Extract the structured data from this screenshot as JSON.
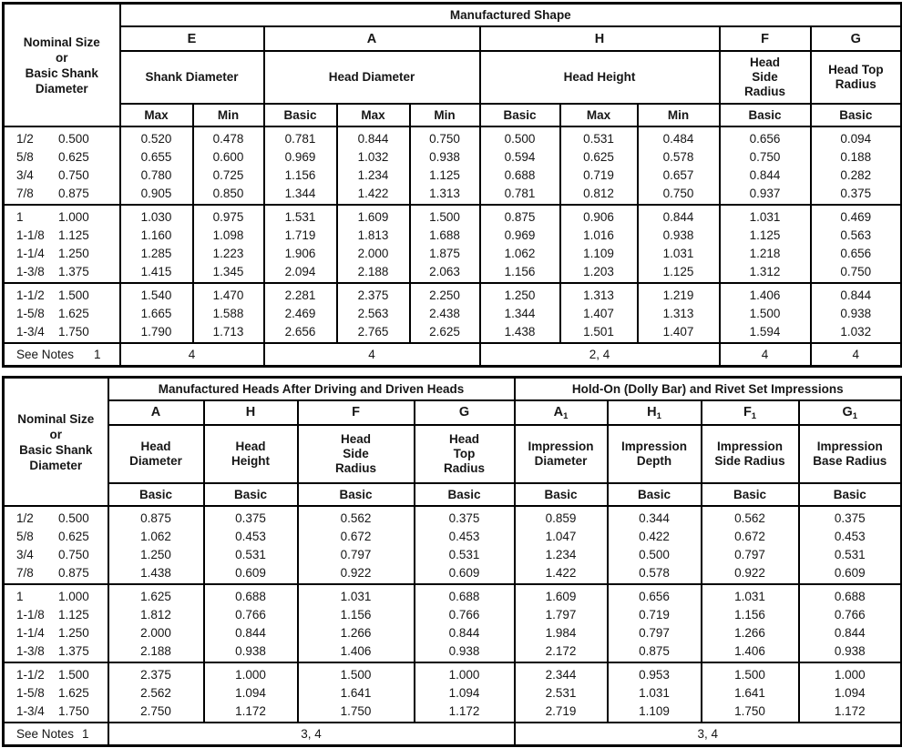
{
  "document": {
    "background": "#ffffff",
    "border_color": "#000000",
    "text_color": "#161616"
  },
  "table1": {
    "title": "Manufactured Shape",
    "nominal_header": "Nominal Size\nor\nBasic Shank\nDiameter",
    "letters": [
      "E",
      "A",
      "H",
      "F",
      "G"
    ],
    "descriptions": [
      "Shank Diameter",
      "Head Diameter",
      "Head Height",
      "Head\nSide\nRadius",
      "Head Top\nRadius"
    ],
    "subheaders": [
      "Max",
      "Min",
      "Basic",
      "Max",
      "Min",
      "Basic",
      "Max",
      "Min",
      "Basic",
      "Basic"
    ],
    "groups": [
      {
        "rows": [
          {
            "size": "1/2",
            "decimal": "0.500",
            "values": [
              "0.520",
              "0.478",
              "0.781",
              "0.844",
              "0.750",
              "0.500",
              "0.531",
              "0.484",
              "0.656",
              "0.094"
            ]
          },
          {
            "size": "5/8",
            "decimal": "0.625",
            "values": [
              "0.655",
              "0.600",
              "0.969",
              "1.032",
              "0.938",
              "0.594",
              "0.625",
              "0.578",
              "0.750",
              "0.188"
            ]
          },
          {
            "size": "3/4",
            "decimal": "0.750",
            "values": [
              "0.780",
              "0.725",
              "1.156",
              "1.234",
              "1.125",
              "0.688",
              "0.719",
              "0.657",
              "0.844",
              "0.282"
            ]
          },
          {
            "size": "7/8",
            "decimal": "0.875",
            "values": [
              "0.905",
              "0.850",
              "1.344",
              "1.422",
              "1.313",
              "0.781",
              "0.812",
              "0.750",
              "0.937",
              "0.375"
            ]
          }
        ]
      },
      {
        "rows": [
          {
            "size": "1",
            "decimal": "1.000",
            "values": [
              "1.030",
              "0.975",
              "1.531",
              "1.609",
              "1.500",
              "0.875",
              "0.906",
              "0.844",
              "1.031",
              "0.469"
            ]
          },
          {
            "size": "1-1/8",
            "decimal": "1.125",
            "values": [
              "1.160",
              "1.098",
              "1.719",
              "1.813",
              "1.688",
              "0.969",
              "1.016",
              "0.938",
              "1.125",
              "0.563"
            ]
          },
          {
            "size": "1-1/4",
            "decimal": "1.250",
            "values": [
              "1.285",
              "1.223",
              "1.906",
              "2.000",
              "1.875",
              "1.062",
              "1.109",
              "1.031",
              "1.218",
              "0.656"
            ]
          },
          {
            "size": "1-3/8",
            "decimal": "1.375",
            "values": [
              "1.415",
              "1.345",
              "2.094",
              "2.188",
              "2.063",
              "1.156",
              "1.203",
              "1.125",
              "1.312",
              "0.750"
            ]
          }
        ]
      },
      {
        "rows": [
          {
            "size": "1-1/2",
            "decimal": "1.500",
            "values": [
              "1.540",
              "1.470",
              "2.281",
              "2.375",
              "2.250",
              "1.250",
              "1.313",
              "1.219",
              "1.406",
              "0.844"
            ]
          },
          {
            "size": "1-5/8",
            "decimal": "1.625",
            "values": [
              "1.665",
              "1.588",
              "2.469",
              "2.563",
              "2.438",
              "1.344",
              "1.407",
              "1.313",
              "1.500",
              "0.938"
            ]
          },
          {
            "size": "1-3/4",
            "decimal": "1.750",
            "values": [
              "1.790",
              "1.713",
              "2.656",
              "2.765",
              "2.625",
              "1.438",
              "1.501",
              "1.407",
              "1.594",
              "1.032"
            ]
          }
        ]
      }
    ],
    "see_notes": {
      "label": "See Notes",
      "note": "1",
      "cells": [
        "4",
        "4",
        "2, 4",
        "4",
        "4"
      ]
    }
  },
  "table2": {
    "title_left": "Manufactured Heads After Driving and Driven Heads",
    "title_right": "Hold-On (Dolly Bar) and Rivet Set Impressions",
    "nominal_header": "Nominal Size\nor\nBasic Shank\nDiameter",
    "letters": [
      {
        "base": "A",
        "sub": ""
      },
      {
        "base": "H",
        "sub": ""
      },
      {
        "base": "F",
        "sub": ""
      },
      {
        "base": "G",
        "sub": ""
      },
      {
        "base": "A",
        "sub": "1"
      },
      {
        "base": "H",
        "sub": "1"
      },
      {
        "base": "F",
        "sub": "1"
      },
      {
        "base": "G",
        "sub": "1"
      }
    ],
    "descriptions": [
      "Head\nDiameter",
      "Head\nHeight",
      "Head\nSide\nRadius",
      "Head\nTop\nRadius",
      "Impression\nDiameter",
      "Impression\nDepth",
      "Impression\nSide Radius",
      "Impression\nBase Radius"
    ],
    "subheaders": [
      "Basic",
      "Basic",
      "Basic",
      "Basic",
      "Basic",
      "Basic",
      "Basic",
      "Basic"
    ],
    "groups": [
      {
        "rows": [
          {
            "size": "1/2",
            "decimal": "0.500",
            "values": [
              "0.875",
              "0.375",
              "0.562",
              "0.375",
              "0.859",
              "0.344",
              "0.562",
              "0.375"
            ]
          },
          {
            "size": "5/8",
            "decimal": "0.625",
            "values": [
              "1.062",
              "0.453",
              "0.672",
              "0.453",
              "1.047",
              "0.422",
              "0.672",
              "0.453"
            ]
          },
          {
            "size": "3/4",
            "decimal": "0.750",
            "values": [
              "1.250",
              "0.531",
              "0.797",
              "0.531",
              "1.234",
              "0.500",
              "0.797",
              "0.531"
            ]
          },
          {
            "size": "7/8",
            "decimal": "0.875",
            "values": [
              "1.438",
              "0.609",
              "0.922",
              "0.609",
              "1.422",
              "0.578",
              "0.922",
              "0.609"
            ]
          }
        ]
      },
      {
        "rows": [
          {
            "size": "1",
            "decimal": "1.000",
            "values": [
              "1.625",
              "0.688",
              "1.031",
              "0.688",
              "1.609",
              "0.656",
              "1.031",
              "0.688"
            ]
          },
          {
            "size": "1-1/8",
            "decimal": "1.125",
            "values": [
              "1.812",
              "0.766",
              "1.156",
              "0.766",
              "1.797",
              "0.719",
              "1.156",
              "0.766"
            ]
          },
          {
            "size": "1-1/4",
            "decimal": "1.250",
            "values": [
              "2.000",
              "0.844",
              "1.266",
              "0.844",
              "1.984",
              "0.797",
              "1.266",
              "0.844"
            ]
          },
          {
            "size": "1-3/8",
            "decimal": "1.375",
            "values": [
              "2.188",
              "0.938",
              "1.406",
              "0.938",
              "2.172",
              "0.875",
              "1.406",
              "0.938"
            ]
          }
        ]
      },
      {
        "rows": [
          {
            "size": "1-1/2",
            "decimal": "1.500",
            "values": [
              "2.375",
              "1.000",
              "1.500",
              "1.000",
              "2.344",
              "0.953",
              "1.500",
              "1.000"
            ]
          },
          {
            "size": "1-5/8",
            "decimal": "1.625",
            "values": [
              "2.562",
              "1.094",
              "1.641",
              "1.094",
              "2.531",
              "1.031",
              "1.641",
              "1.094"
            ]
          },
          {
            "size": "1-3/4",
            "decimal": "1.750",
            "values": [
              "2.750",
              "1.172",
              "1.750",
              "1.172",
              "2.719",
              "1.109",
              "1.750",
              "1.172"
            ]
          }
        ]
      }
    ],
    "see_notes": {
      "label": "See Notes",
      "note": "1",
      "cells": [
        "3, 4",
        "3, 4"
      ]
    }
  }
}
